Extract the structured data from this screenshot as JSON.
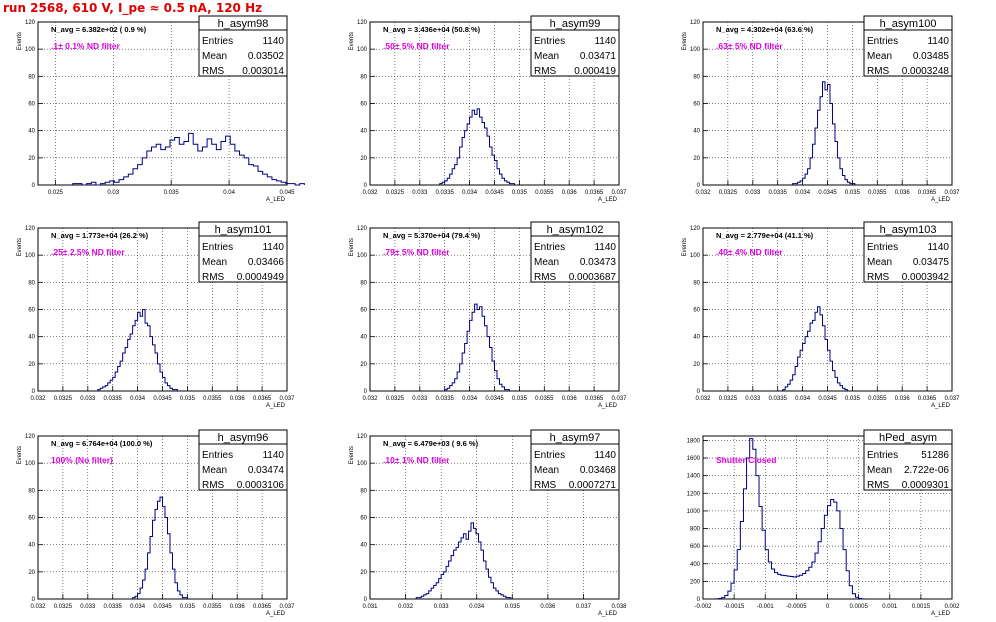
{
  "title": "run 2568,   610 V, I_pe ≈ 0.5 nA, 120 Hz",
  "colors": {
    "hist": "#000080",
    "annotation": "#e000e0",
    "title": "#e00000",
    "grid": "#000000"
  },
  "chart_data": [
    {
      "type": "histogram",
      "name": "h_asym98",
      "stats": {
        "Entries": "1140",
        "Mean": "0.03502",
        "RMS": "0.003014"
      },
      "navg": "N_avg = 6.382e+02 ( 0.9 %)",
      "annotation": ".1± 0.1% ND filter",
      "ylabel": "Events",
      "xlabel": "A_LED",
      "xlim": [
        0.0235,
        0.045
      ],
      "ylim": [
        0,
        120
      ],
      "xticks": [
        0.025,
        0.03,
        0.035,
        0.04,
        0.045
      ],
      "xtick_labels": [
        "0.025",
        "0.03",
        "0.035",
        "0.04",
        "0.045"
      ],
      "yticks": [
        0,
        20,
        40,
        60,
        80,
        100,
        120
      ],
      "bins": {
        "start": 0.0265,
        "width": 0.0004,
        "counts": [
          1,
          1,
          0,
          1,
          2,
          0,
          1,
          2,
          3,
          2,
          4,
          6,
          8,
          12,
          15,
          20,
          25,
          28,
          30,
          26,
          28,
          33,
          35,
          30,
          32,
          38,
          30,
          25,
          28,
          34,
          30,
          26,
          32,
          36,
          30,
          25,
          22,
          20,
          15,
          14,
          10,
          8,
          6,
          4,
          3,
          2,
          1,
          1,
          0,
          1
        ]
      }
    },
    {
      "type": "histogram",
      "name": "h_asym99",
      "stats": {
        "Entries": "1140",
        "Mean": "0.03471",
        "RMS": "0.000419"
      },
      "navg": "N_avg = 3.436e+04 (50.8 %)",
      "annotation": ".50± 5% ND filter",
      "ylabel": "Events",
      "xlabel": "A_LED",
      "xlim": [
        0.032,
        0.037
      ],
      "ylim": [
        0,
        120
      ],
      "xticks": [
        0.032,
        0.0325,
        0.033,
        0.0335,
        0.034,
        0.0345,
        0.035,
        0.0355,
        0.036,
        0.0365,
        0.037
      ],
      "xtick_labels": [
        "0.032",
        "0.0325",
        "0.033",
        "0.0335",
        "0.034",
        "0.0345",
        "0.035",
        "0.0355",
        "0.036",
        "0.0365",
        "0.037"
      ],
      "yticks": [
        0,
        20,
        40,
        60,
        80,
        100,
        120
      ],
      "bins": {
        "start": 0.0334,
        "width": 5e-05,
        "counts": [
          1,
          2,
          3,
          5,
          8,
          12,
          15,
          20,
          28,
          35,
          40,
          45,
          50,
          55,
          52,
          56,
          50,
          46,
          42,
          36,
          28,
          22,
          18,
          12,
          8,
          5,
          3,
          2,
          1,
          1
        ]
      }
    },
    {
      "type": "histogram",
      "name": "h_asym100",
      "stats": {
        "Entries": "1140",
        "Mean": "0.03485",
        "RMS": "0.0003248"
      },
      "navg": "N_avg = 4.302e+04 (63.6 %)",
      "annotation": ".63± 5% ND filter",
      "ylabel": "Events",
      "xlabel": "A_LED",
      "xlim": [
        0.032,
        0.037
      ],
      "ylim": [
        0,
        120
      ],
      "xticks": [
        0.032,
        0.0325,
        0.033,
        0.0335,
        0.034,
        0.0345,
        0.035,
        0.0355,
        0.036,
        0.0365,
        0.037
      ],
      "xtick_labels": [
        "0.032",
        "0.0325",
        "0.033",
        "0.0335",
        "0.034",
        "0.0345",
        "0.035",
        "0.0355",
        "0.036",
        "0.0365",
        "0.037"
      ],
      "yticks": [
        0,
        20,
        40,
        60,
        80,
        100,
        120
      ],
      "bins": {
        "start": 0.0338,
        "width": 5e-05,
        "counts": [
          1,
          1,
          2,
          3,
          5,
          8,
          12,
          20,
          30,
          42,
          55,
          65,
          76,
          70,
          74,
          60,
          45,
          32,
          20,
          12,
          7,
          4,
          2,
          1,
          1
        ]
      }
    },
    {
      "type": "histogram",
      "name": "h_asym101",
      "stats": {
        "Entries": "1140",
        "Mean": "0.03466",
        "RMS": "0.0004949"
      },
      "navg": "N_avg = 1.773e+04 (26.2 %)",
      "annotation": ".25± 2.5% ND filter",
      "ylabel": "Events",
      "xlabel": "A_LED",
      "xlim": [
        0.032,
        0.037
      ],
      "ylim": [
        0,
        120
      ],
      "xticks": [
        0.032,
        0.0325,
        0.033,
        0.0335,
        0.034,
        0.0345,
        0.035,
        0.0355,
        0.036,
        0.0365,
        0.037
      ],
      "xtick_labels": [
        "0.032",
        "0.0325",
        "0.033",
        "0.0335",
        "0.034",
        "0.0345",
        "0.035",
        "0.0355",
        "0.036",
        "0.0365",
        "0.037"
      ],
      "yticks": [
        0,
        20,
        40,
        60,
        80,
        100,
        120
      ],
      "bins": {
        "start": 0.0332,
        "width": 5e-05,
        "counts": [
          1,
          2,
          3,
          4,
          6,
          8,
          10,
          14,
          18,
          22,
          28,
          32,
          38,
          42,
          48,
          52,
          58,
          55,
          60,
          50,
          48,
          40,
          34,
          28,
          20,
          14,
          10,
          6,
          4,
          2,
          1,
          1
        ]
      }
    },
    {
      "type": "histogram",
      "name": "h_asym102",
      "stats": {
        "Entries": "1140",
        "Mean": "0.03473",
        "RMS": "0.0003687"
      },
      "navg": "N_avg = 5.370e+04 (79.4 %)",
      "annotation": ".79± 5% ND filter",
      "ylabel": "Events",
      "xlabel": "A_LED",
      "xlim": [
        0.032,
        0.037
      ],
      "ylim": [
        0,
        120
      ],
      "xticks": [
        0.032,
        0.0325,
        0.033,
        0.0335,
        0.034,
        0.0345,
        0.035,
        0.0355,
        0.036,
        0.0365,
        0.037
      ],
      "xtick_labels": [
        "0.032",
        "0.0325",
        "0.033",
        "0.0335",
        "0.034",
        "0.0345",
        "0.035",
        "0.0355",
        "0.036",
        "0.0365",
        "0.037"
      ],
      "yticks": [
        0,
        20,
        40,
        60,
        80,
        100,
        120
      ],
      "bins": {
        "start": 0.0335,
        "width": 5e-05,
        "counts": [
          1,
          2,
          4,
          6,
          9,
          14,
          20,
          28,
          35,
          44,
          52,
          58,
          64,
          60,
          62,
          55,
          48,
          40,
          32,
          22,
          15,
          9,
          5,
          3,
          1,
          1
        ]
      }
    },
    {
      "type": "histogram",
      "name": "h_asym103",
      "stats": {
        "Entries": "1140",
        "Mean": "0.03475",
        "RMS": "0.0003942"
      },
      "navg": "N_avg = 2.779e+04 (41.1 %)",
      "annotation": ".40± 4% ND filter",
      "ylabel": "Events",
      "xlabel": "A_LED",
      "xlim": [
        0.032,
        0.037
      ],
      "ylim": [
        0,
        120
      ],
      "xticks": [
        0.032,
        0.0325,
        0.033,
        0.0335,
        0.034,
        0.0345,
        0.035,
        0.0355,
        0.036,
        0.0365,
        0.037
      ],
      "xtick_labels": [
        "0.032",
        "0.0325",
        "0.033",
        "0.0335",
        "0.034",
        "0.0345",
        "0.035",
        "0.0355",
        "0.036",
        "0.0365",
        "0.037"
      ],
      "yticks": [
        0,
        20,
        40,
        60,
        80,
        100,
        120
      ],
      "bins": {
        "start": 0.0336,
        "width": 5e-05,
        "counts": [
          1,
          3,
          5,
          8,
          12,
          18,
          25,
          30,
          35,
          40,
          44,
          50,
          52,
          58,
          62,
          56,
          48,
          38,
          30,
          22,
          15,
          10,
          6,
          4,
          2,
          1
        ]
      }
    },
    {
      "type": "histogram",
      "name": "h_asym96",
      "stats": {
        "Entries": "1140",
        "Mean": "0.03474",
        "RMS": "0.0003106"
      },
      "navg": "N_avg = 6.764e+04 (100.0 %)",
      "annotation": "100% (No filter)",
      "ylabel": "Events",
      "xlabel": "A_LED",
      "xlim": [
        0.032,
        0.037
      ],
      "ylim": [
        0,
        120
      ],
      "xticks": [
        0.032,
        0.0325,
        0.033,
        0.0335,
        0.034,
        0.0345,
        0.035,
        0.0355,
        0.036,
        0.0365,
        0.037
      ],
      "xtick_labels": [
        "0.032",
        "0.0325",
        "0.033",
        "0.0335",
        "0.034",
        "0.0345",
        "0.035",
        "0.0355",
        "0.036",
        "0.0365",
        "0.037"
      ],
      "yticks": [
        0,
        20,
        40,
        60,
        80,
        100,
        120
      ],
      "bins": {
        "start": 0.0339,
        "width": 5e-05,
        "counts": [
          1,
          2,
          4,
          8,
          14,
          22,
          34,
          46,
          58,
          66,
          72,
          75,
          68,
          60,
          48,
          34,
          22,
          12,
          6,
          3,
          1,
          1
        ]
      }
    },
    {
      "type": "histogram",
      "name": "h_asym97",
      "stats": {
        "Entries": "1140",
        "Mean": "0.03468",
        "RMS": "0.0007271"
      },
      "navg": "N_avg = 6.479e+03 ( 9.6 %)",
      "annotation": ".10± 1% ND filter",
      "ylabel": "Events",
      "xlabel": "A_LED",
      "xlim": [
        0.031,
        0.038
      ],
      "ylim": [
        0,
        120
      ],
      "xticks": [
        0.031,
        0.032,
        0.033,
        0.034,
        0.035,
        0.036,
        0.037,
        0.038
      ],
      "xtick_labels": [
        "0.031",
        "0.032",
        "0.033",
        "0.034",
        "0.035",
        "0.036",
        "0.037",
        "0.038"
      ],
      "yticks": [
        0,
        20,
        40,
        60,
        80,
        100,
        120
      ],
      "bins": {
        "start": 0.0323,
        "width": 7e-05,
        "counts": [
          1,
          1,
          2,
          3,
          4,
          6,
          8,
          10,
          12,
          15,
          18,
          20,
          24,
          28,
          32,
          36,
          38,
          42,
          45,
          48,
          44,
          50,
          56,
          52,
          48,
          42,
          36,
          28,
          22,
          16,
          12,
          8,
          6,
          4,
          3,
          2,
          1,
          1
        ]
      }
    },
    {
      "type": "histogram",
      "name": "hPed_asym",
      "stats": {
        "Entries": "51286",
        "Mean": "2.722e-06",
        "RMS": "0.0009301"
      },
      "navg": "",
      "annotation": "Shutter Closed",
      "ylabel": "",
      "xlabel": "A_LED",
      "xlim": [
        -0.002,
        0.002
      ],
      "ylim": [
        0,
        1850
      ],
      "xticks": [
        -0.002,
        -0.0015,
        -0.001,
        -0.0005,
        0,
        0.0005,
        0.001,
        0.0015,
        0.002
      ],
      "xtick_labels": [
        "-0.002",
        "-0.0015",
        "-0.001",
        "-0.0005",
        "0",
        "0.0005",
        "0.001",
        "0.0015",
        "0.002"
      ],
      "yticks": [
        0,
        200,
        400,
        600,
        800,
        1000,
        1200,
        1400,
        1600,
        1800
      ],
      "bins": {
        "start": -0.0018,
        "width": 5e-05,
        "counts": [
          2,
          5,
          15,
          40,
          90,
          180,
          330,
          560,
          880,
          1250,
          1600,
          1820,
          1700,
          1400,
          1050,
          780,
          560,
          420,
          340,
          300,
          280,
          270,
          265,
          260,
          255,
          250,
          260,
          270,
          290,
          320,
          360,
          420,
          520,
          650,
          800,
          950,
          1060,
          1130,
          1100,
          1000,
          800,
          560,
          320,
          150,
          60,
          20,
          5,
          2
        ]
      }
    }
  ]
}
